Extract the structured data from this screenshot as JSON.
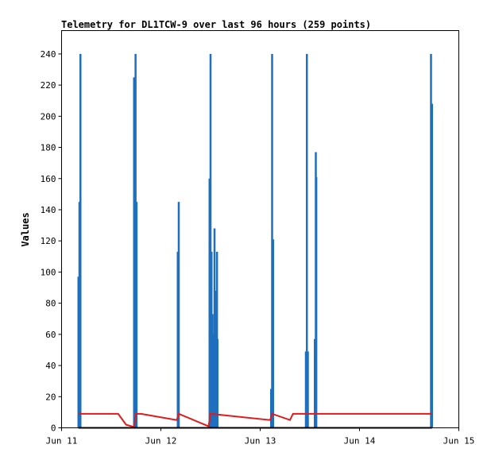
{
  "chart_data": {
    "type": "line",
    "title": "Telemetry for DL1TCW-9 over last 96 hours (259 points)",
    "xlabel": "",
    "ylabel": "Values",
    "xlim": [
      0,
      4
    ],
    "ylim": [
      0,
      255
    ],
    "x_ticks": [
      {
        "value": 0,
        "label": "Jun 11"
      },
      {
        "value": 1,
        "label": "Jun 12"
      },
      {
        "value": 2,
        "label": "Jun 13"
      },
      {
        "value": 3,
        "label": "Jun 14"
      },
      {
        "value": 4,
        "label": "Jun 15"
      }
    ],
    "y_ticks": [
      0,
      20,
      40,
      60,
      80,
      100,
      120,
      140,
      160,
      180,
      200,
      220,
      240
    ],
    "grid": false,
    "colors": {
      "blue": "#1f6fbf",
      "red": "#e01b1b",
      "black": "#000000",
      "frame": "#000000",
      "background": "#ffffff"
    },
    "series": [
      {
        "style": "spikes",
        "color": "#1f6fbf",
        "spikes": [
          [
            0.17,
            97
          ],
          [
            0.18,
            145
          ],
          [
            0.19,
            240
          ],
          [
            0.73,
            225
          ],
          [
            0.745,
            240
          ],
          [
            0.755,
            145
          ],
          [
            1.17,
            113
          ],
          [
            1.18,
            145
          ],
          [
            1.49,
            160
          ],
          [
            1.5,
            240
          ],
          [
            1.51,
            113
          ],
          [
            1.52,
            73
          ],
          [
            1.53,
            60
          ],
          [
            1.54,
            128
          ],
          [
            1.55,
            88
          ],
          [
            1.56,
            60
          ],
          [
            1.565,
            113
          ],
          [
            1.57,
            57
          ],
          [
            2.11,
            25
          ],
          [
            2.12,
            240
          ],
          [
            2.13,
            121
          ],
          [
            2.46,
            49
          ],
          [
            2.47,
            240
          ],
          [
            2.48,
            49
          ],
          [
            2.55,
            57
          ],
          [
            2.56,
            177
          ],
          [
            2.565,
            161
          ],
          [
            3.72,
            240
          ],
          [
            3.73,
            208
          ]
        ]
      },
      {
        "style": "line",
        "color": "#e01b1b",
        "points": [
          [
            0.17,
            9
          ],
          [
            0.57,
            9
          ],
          [
            0.65,
            2
          ],
          [
            0.73,
            0.5
          ],
          [
            0.75,
            9
          ],
          [
            0.8,
            9
          ],
          [
            1.16,
            5
          ],
          [
            1.18,
            9
          ],
          [
            1.48,
            1
          ],
          [
            1.5,
            9
          ],
          [
            2.1,
            5
          ],
          [
            2.12,
            9
          ],
          [
            2.3,
            5
          ],
          [
            2.33,
            9
          ],
          [
            3.73,
            9
          ]
        ]
      },
      {
        "style": "line",
        "color": "#000000",
        "points": [
          [
            0.17,
            0
          ],
          [
            3.73,
            0
          ]
        ]
      }
    ]
  }
}
